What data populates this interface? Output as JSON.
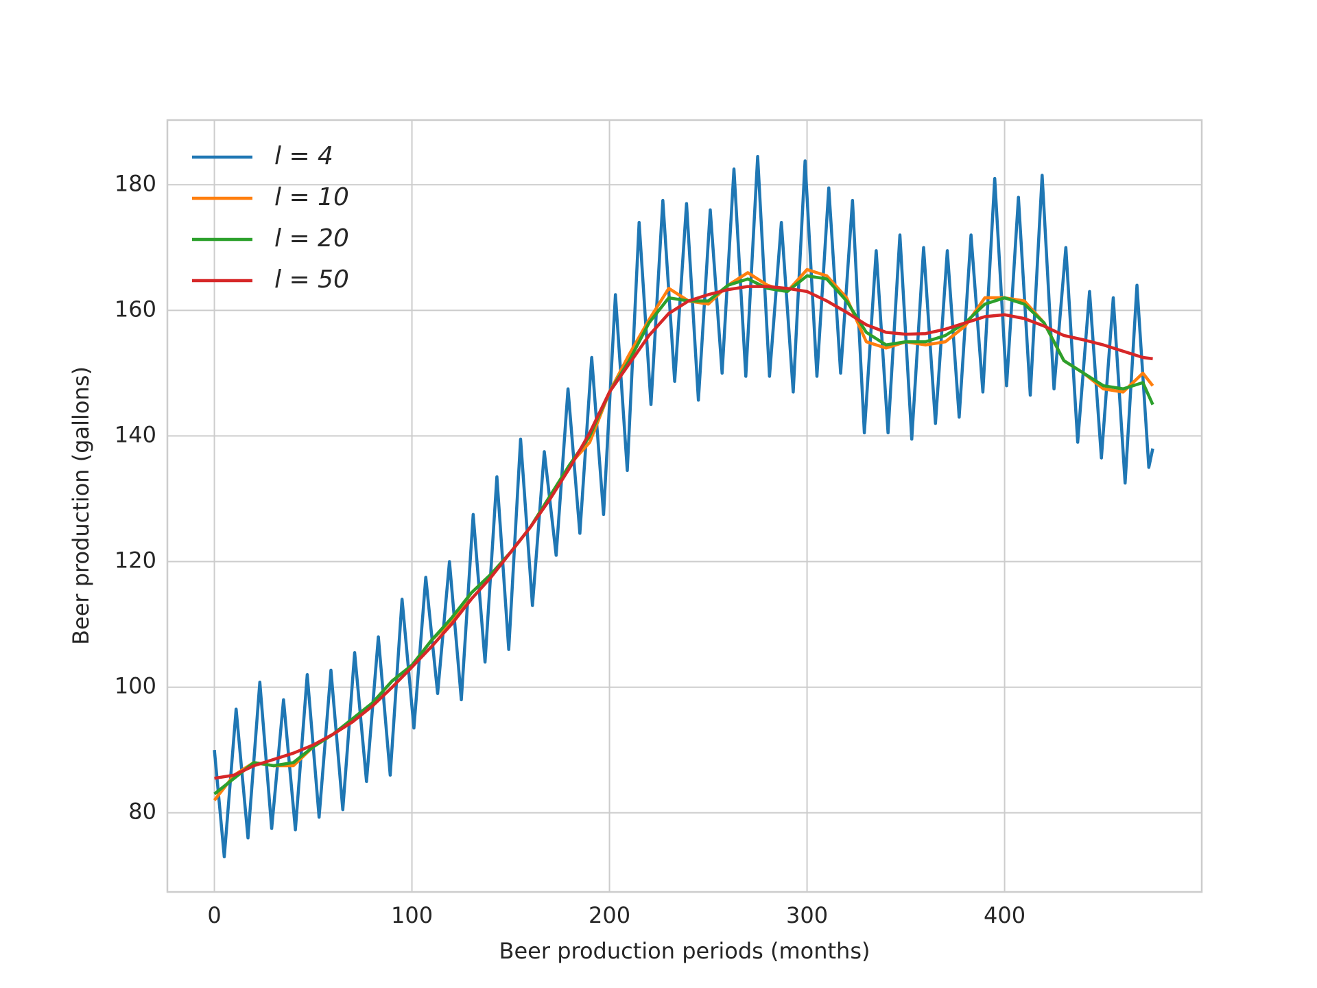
{
  "chart_data": {
    "type": "line",
    "xlabel": "Beer production periods (months)",
    "ylabel": "Beer production (gallons)",
    "xlim": [
      -23.8,
      499.8
    ],
    "ylim": [
      67.4,
      190.3
    ],
    "xticks": [
      0,
      100,
      200,
      300,
      400
    ],
    "yticks": [
      80,
      100,
      120,
      140,
      160,
      180
    ],
    "grid": true,
    "legend": "upper left",
    "series": [
      {
        "name": "l = 4",
        "color": "#1f77b4",
        "x": [
          0,
          5,
          11,
          17,
          23,
          29,
          35,
          41,
          47,
          53,
          59,
          65,
          71,
          77,
          83,
          89,
          95,
          101,
          107,
          113,
          119,
          125,
          131,
          137,
          143,
          149,
          155,
          161,
          167,
          173,
          179,
          185,
          191,
          197,
          203,
          209,
          215,
          221,
          227,
          233,
          239,
          245,
          251,
          257,
          263,
          269,
          275,
          281,
          287,
          293,
          299,
          305,
          311,
          317,
          323,
          329,
          335,
          341,
          347,
          353,
          359,
          365,
          371,
          377,
          383,
          389,
          395,
          401,
          407,
          413,
          419,
          425,
          431,
          437,
          443,
          449,
          455,
          461,
          467,
          473,
          475
        ],
        "values": [
          90,
          73,
          96.5,
          76,
          100.8,
          77.5,
          98,
          77.3,
          102,
          79.3,
          102.7,
          80.5,
          105.5,
          85,
          108,
          86,
          114,
          93.5,
          117.5,
          99,
          120,
          98,
          127.5,
          104,
          133.5,
          106,
          139.5,
          113,
          137.5,
          121,
          147.5,
          124.5,
          152.5,
          127.5,
          162.5,
          134.5,
          174,
          145,
          177.5,
          148.7,
          177,
          145.7,
          176,
          150,
          182.5,
          149.5,
          184.5,
          149.5,
          174,
          147,
          183.8,
          149.5,
          179.5,
          150,
          177.5,
          140.5,
          169.5,
          140.5,
          172,
          139.5,
          170,
          142,
          169.5,
          143,
          172,
          147,
          181,
          148,
          178,
          146.5,
          181.5,
          147.5,
          170,
          139,
          163,
          136.5,
          162,
          132.5,
          164,
          135,
          138
        ]
      },
      {
        "name": "l = 10",
        "color": "#ff7f0e",
        "x": [
          0,
          10,
          20,
          30,
          40,
          50,
          60,
          70,
          80,
          90,
          100,
          110,
          120,
          130,
          140,
          150,
          160,
          170,
          180,
          190,
          200,
          210,
          220,
          230,
          240,
          250,
          260,
          270,
          280,
          290,
          300,
          310,
          320,
          330,
          340,
          350,
          360,
          370,
          380,
          390,
          400,
          410,
          420,
          430,
          440,
          450,
          460,
          470,
          475
        ],
        "values": [
          82,
          86,
          88,
          87.5,
          87.5,
          90.5,
          92.5,
          94.5,
          97.5,
          101,
          103.5,
          107.5,
          110.5,
          115,
          118,
          121.5,
          125.5,
          130.5,
          135.5,
          139,
          147,
          153,
          158.5,
          163.5,
          161.5,
          161,
          164,
          166,
          164,
          163,
          166.5,
          165.5,
          162,
          155,
          154,
          155,
          154.5,
          155,
          157.5,
          162,
          162,
          161.5,
          158,
          152,
          150,
          147.5,
          147,
          150,
          148
        ]
      },
      {
        "name": "l = 20",
        "color": "#2ca02c",
        "x": [
          0,
          10,
          20,
          30,
          40,
          50,
          60,
          70,
          80,
          90,
          100,
          110,
          120,
          130,
          140,
          150,
          160,
          170,
          180,
          190,
          200,
          210,
          220,
          230,
          240,
          250,
          260,
          270,
          280,
          290,
          300,
          310,
          320,
          330,
          340,
          350,
          360,
          370,
          380,
          390,
          400,
          410,
          420,
          430,
          440,
          450,
          460,
          470,
          475
        ],
        "values": [
          83,
          85.5,
          88,
          87.5,
          88,
          90.5,
          92.5,
          95,
          97.5,
          101,
          103.5,
          107.5,
          111,
          115,
          118,
          121.5,
          125.5,
          130.5,
          135.5,
          140,
          147,
          152,
          158,
          162,
          161.5,
          161.5,
          164,
          165,
          163.5,
          163,
          165.5,
          165,
          161.5,
          156.5,
          154.5,
          155,
          155,
          156,
          158,
          161,
          162,
          161,
          158,
          152,
          150,
          148,
          147.5,
          148.5,
          145
        ]
      },
      {
        "name": "l = 50",
        "color": "#d62728",
        "x": [
          0,
          10,
          20,
          30,
          40,
          50,
          60,
          70,
          80,
          90,
          100,
          110,
          120,
          130,
          140,
          150,
          160,
          170,
          180,
          190,
          200,
          210,
          220,
          230,
          240,
          250,
          260,
          270,
          280,
          290,
          300,
          310,
          320,
          330,
          340,
          350,
          360,
          370,
          380,
          390,
          400,
          410,
          420,
          430,
          440,
          450,
          460,
          470,
          475
        ],
        "values": [
          85.5,
          86,
          87.5,
          88.5,
          89.5,
          90.8,
          92.5,
          94.5,
          97,
          100,
          103.2,
          106.5,
          110,
          114,
          117.5,
          121.5,
          125.5,
          130,
          135,
          140.5,
          147,
          151.5,
          156,
          159.5,
          161.5,
          162.5,
          163.3,
          163.8,
          163.8,
          163.5,
          163,
          161.5,
          159.7,
          157.7,
          156.5,
          156.2,
          156.3,
          157,
          158,
          159,
          159.3,
          158.7,
          157.5,
          156,
          155.3,
          154.5,
          153.5,
          152.5,
          152.3
        ]
      }
    ]
  }
}
